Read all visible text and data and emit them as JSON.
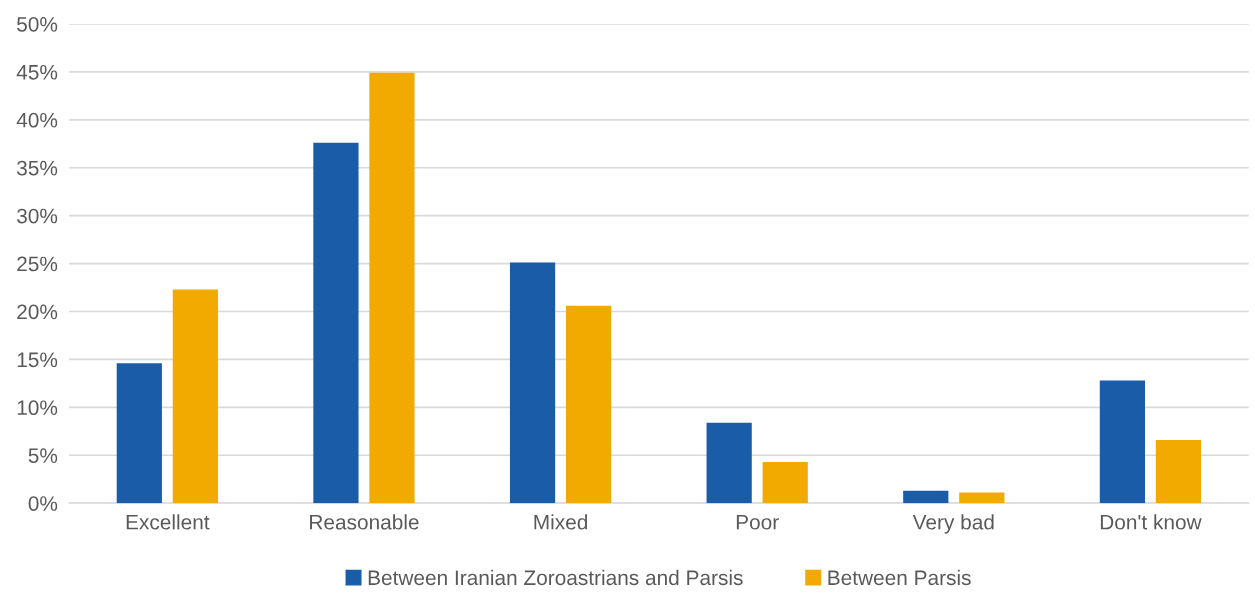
{
  "chart_data": {
    "type": "bar",
    "categories": [
      "Excellent",
      "Reasonable",
      "Mixed",
      "Poor",
      "Very bad",
      "Don't know"
    ],
    "series": [
      {
        "name": "Between Iranian Zoroastrians and Parsis",
        "color": "#1a5ca8",
        "values": [
          14.6,
          37.6,
          25.1,
          8.4,
          1.3,
          12.8
        ]
      },
      {
        "name": "Between Parsis",
        "color": "#f2a900",
        "values": [
          22.3,
          44.9,
          20.6,
          4.3,
          1.1,
          6.6
        ]
      }
    ],
    "ylim": [
      0,
      50
    ],
    "yticks": [
      {
        "value": 0,
        "label": "0%"
      },
      {
        "value": 5,
        "label": "5%"
      },
      {
        "value": 10,
        "label": "10%"
      },
      {
        "value": 15,
        "label": "15%"
      },
      {
        "value": 20,
        "label": "20%"
      },
      {
        "value": 25,
        "label": "25%"
      },
      {
        "value": 30,
        "label": "30%"
      },
      {
        "value": 35,
        "label": "35%"
      },
      {
        "value": 40,
        "label": "40%"
      },
      {
        "value": 45,
        "label": "45%"
      },
      {
        "value": 50,
        "label": "50%"
      }
    ],
    "grid": "y",
    "legend": "bottom"
  }
}
